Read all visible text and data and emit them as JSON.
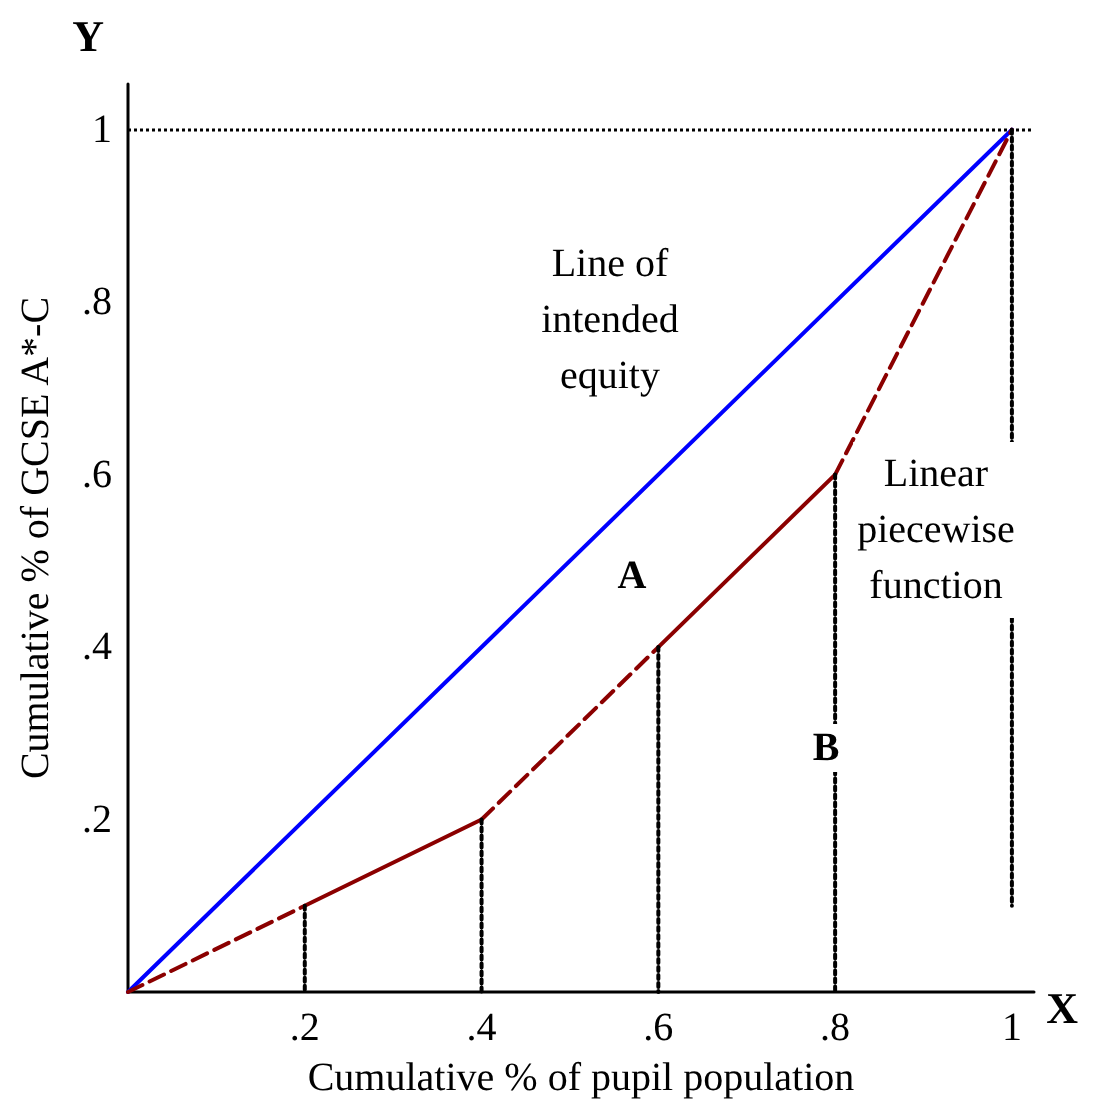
{
  "chart_data": {
    "type": "line",
    "xlabel": "Cumulative % of pupil population",
    "ylabel": "Cumulative % of GCSE A*-C",
    "xlim": [
      0,
      1.025
    ],
    "ylim": [
      0,
      1.053
    ],
    "xticks": [
      {
        "value": 0.2,
        "label": ".2"
      },
      {
        "value": 0.4,
        "label": ".4"
      },
      {
        "value": 0.6,
        "label": ".6"
      },
      {
        "value": 0.8,
        "label": ".8"
      },
      {
        "value": 1,
        "label": "1"
      }
    ],
    "yticks": [
      {
        "value": 0.2,
        "label": ".2"
      },
      {
        "value": 0.4,
        "label": ".4"
      },
      {
        "value": 0.6,
        "label": ".6"
      },
      {
        "value": 0.8,
        "label": ".8"
      },
      {
        "value": 1,
        "label": "1"
      }
    ],
    "marker": "none",
    "series": [
      {
        "color": "#0000ff",
        "line_style": "solid",
        "x": [
          0,
          1
        ],
        "values": [
          0,
          1
        ]
      },
      {
        "color": "#8b0000",
        "line_style": "dashed",
        "x": [
          0,
          0.2
        ],
        "values": [
          0,
          0.1
        ]
      },
      {
        "color": "#8b0000",
        "line_style": "solid",
        "x": [
          0.2,
          0.4
        ],
        "values": [
          0.1,
          0.2
        ]
      },
      {
        "color": "#8b0000",
        "line_style": "dashed",
        "x": [
          0.4,
          0.6
        ],
        "values": [
          0.2,
          0.4
        ]
      },
      {
        "color": "#8b0000",
        "line_style": "solid",
        "x": [
          0.6,
          0.8
        ],
        "values": [
          0.4,
          0.6
        ]
      },
      {
        "color": "#8b0000",
        "line_style": "dashed",
        "x": [
          0.8,
          1
        ],
        "values": [
          0.6,
          1
        ]
      },
      {
        "color": "#000000",
        "line_style": "dotted",
        "x": [
          0.2,
          0.2
        ],
        "values": [
          0.1,
          0
        ]
      },
      {
        "color": "#000000",
        "line_style": "dotted",
        "x": [
          0.4,
          0.4
        ],
        "values": [
          0.2,
          0
        ]
      },
      {
        "color": "#000000",
        "line_style": "dotted",
        "x": [
          0.6,
          0.6
        ],
        "values": [
          0.4,
          0
        ]
      },
      {
        "color": "#000000",
        "line_style": "dotted",
        "x": [
          0.8,
          0.8
        ],
        "values": [
          0.6,
          0
        ]
      },
      {
        "color": "#000000",
        "line_style": "dotted",
        "x": [
          1,
          1
        ],
        "values": [
          1,
          0.1
        ]
      }
    ],
    "ref_lines": [
      {
        "axis": "y",
        "value": 1,
        "color": "#000000",
        "line_style": "dotted"
      }
    ],
    "annotations": [
      "Y",
      "X",
      "Line of\nintended\nequity",
      "A",
      "B",
      "Linear\npiecewise\nfunction"
    ]
  }
}
